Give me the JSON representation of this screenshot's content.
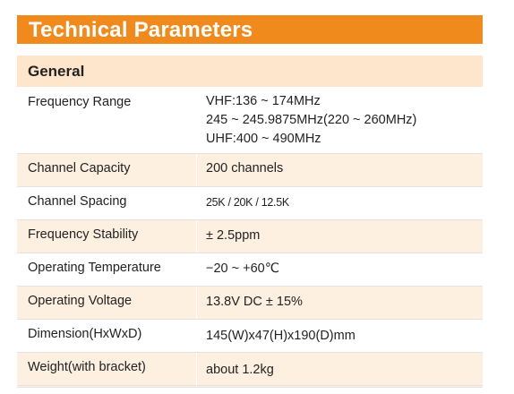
{
  "title": "Technical Parameters",
  "section": "General",
  "rows": [
    {
      "label": "Frequency Range",
      "values": [
        "VHF:136 ~ 174MHz",
        "245 ~ 245.9875MHz(220 ~ 260MHz)",
        "UHF:400 ~ 490MHz"
      ]
    },
    {
      "label": "Channel Capacity",
      "values": [
        "200 channels"
      ]
    },
    {
      "label": "Channel Spacing",
      "values": [
        "25K / 20K / 12.5K"
      ]
    },
    {
      "label": "Frequency Stability",
      "values": [
        "± 2.5ppm"
      ]
    },
    {
      "label": "Operating  Temperature",
      "values": [
        "−20 ~ +60℃"
      ]
    },
    {
      "label": "Operating Voltage",
      "values": [
        "13.8V DC  ± 15%"
      ]
    },
    {
      "label": "Dimension(HxWxD)",
      "values": [
        "145(W)x47(H)x190(D)mm"
      ]
    },
    {
      "label": "Weight(with bracket)",
      "values": [
        "about 1.2kg"
      ]
    }
  ],
  "colors": {
    "title_bar": "#f08a1c",
    "section_bar": "#fde6cc",
    "row_shade": "#fdf0e1"
  }
}
